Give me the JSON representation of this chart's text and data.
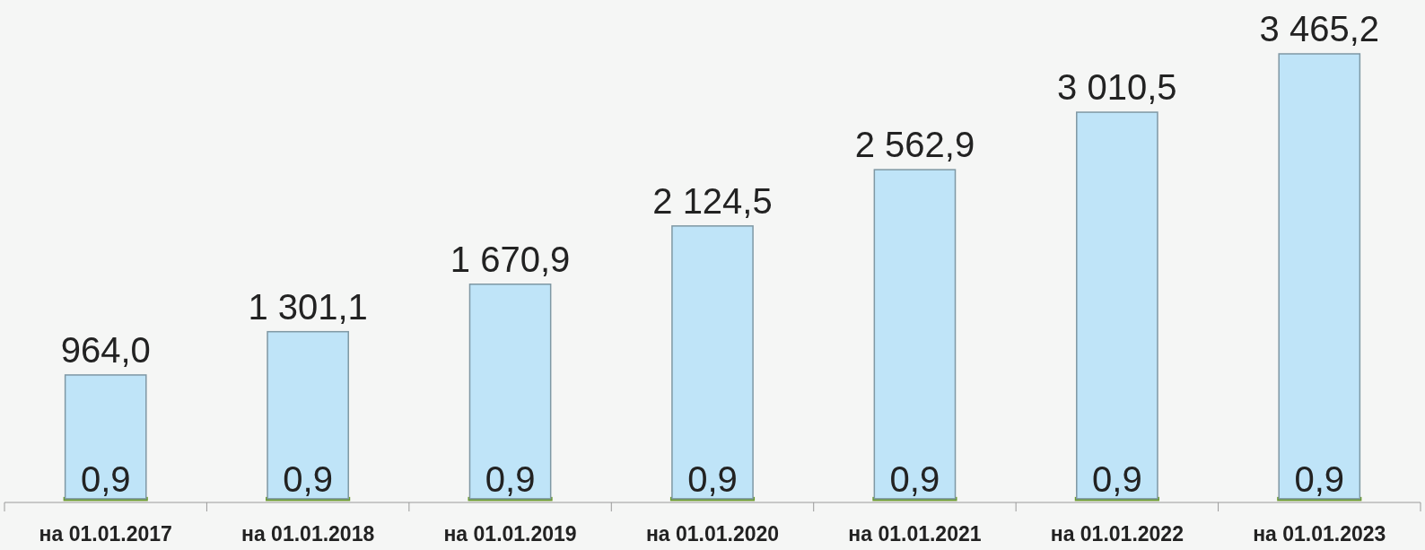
{
  "chart_data": {
    "type": "bar",
    "stacked": true,
    "categories": [
      "на 01.01.2017",
      "на 01.01.2018",
      "на 01.01.2019",
      "на 01.01.2020",
      "на 01.01.2021",
      "на 01.01.2022",
      "на 01.01.2023"
    ],
    "series": [
      {
        "color": "#6b9a2c",
        "values": [
          0.9,
          0.9,
          0.9,
          0.9,
          0.9,
          0.9,
          0.9
        ],
        "value_labels": [
          "0,9",
          "0,9",
          "0,9",
          "0,9",
          "0,9",
          "0,9",
          "0,9"
        ]
      },
      {
        "color": "#bfe4f8",
        "values": [
          964.0,
          1301.1,
          1670.9,
          2124.5,
          2562.9,
          3010.5,
          3465.2
        ],
        "value_labels": [
          "964,0",
          "1 301,1",
          "1 670,9",
          "2 124,5",
          "2 562,9",
          "3 010,5",
          "3 465,2"
        ]
      }
    ]
  }
}
